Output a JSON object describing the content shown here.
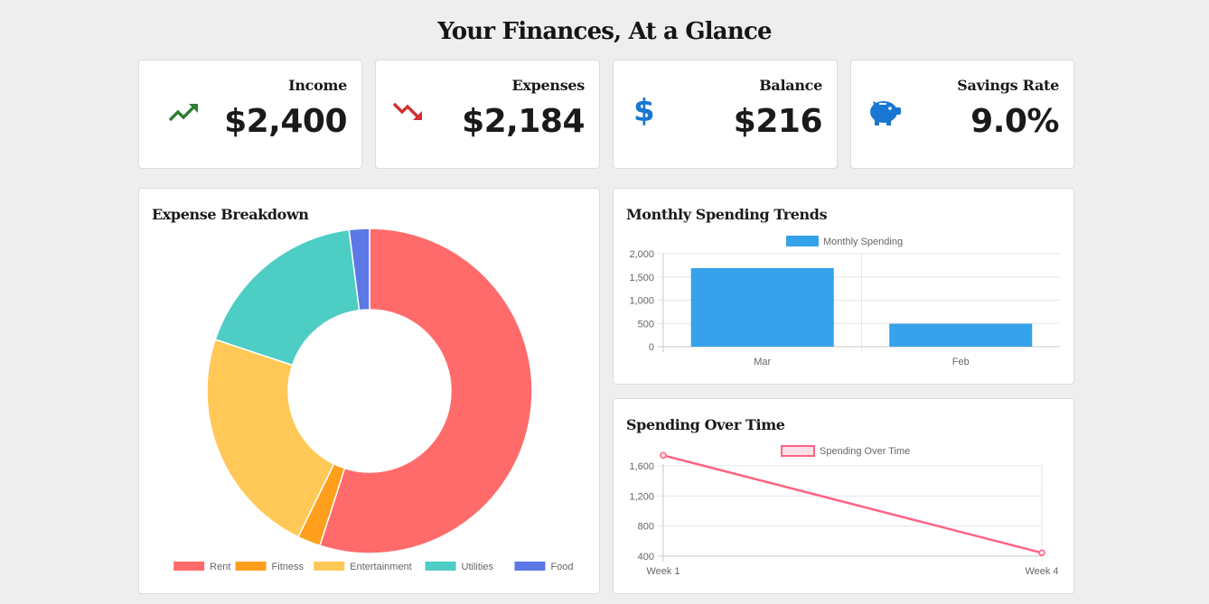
{
  "page": {
    "title": "Your Finances, At a Glance"
  },
  "stats": [
    {
      "label": "Income",
      "value": "$2,400",
      "icon": "trending-up-icon",
      "color": "#2e7d32"
    },
    {
      "label": "Expenses",
      "value": "$2,184",
      "icon": "trending-down-icon",
      "color": "#d32f2f"
    },
    {
      "label": "Balance",
      "value": "$216",
      "icon": "dollar-sign-icon",
      "color": "#1976d2"
    },
    {
      "label": "Savings Rate",
      "value": "9.0%",
      "icon": "piggy-bank-icon",
      "color": "#1976d2"
    }
  ],
  "chart_data": [
    {
      "type": "doughnut",
      "title": "Expense Breakdown",
      "labels": [
        "Rent",
        "Fitness",
        "Entertainment",
        "Utilities",
        "Food"
      ],
      "values": [
        1200,
        50,
        500,
        390,
        44
      ],
      "colors": [
        "#ff6b6b",
        "#ff9f1c",
        "#ffc857",
        "#4ecdc4",
        "#5b78e6"
      ],
      "legend": "bottom"
    },
    {
      "type": "bar",
      "title": "Monthly Spending Trends",
      "categories": [
        "Mar",
        "Feb"
      ],
      "series": [
        {
          "name": "Monthly Spending",
          "values": [
            1690,
            494
          ]
        }
      ],
      "ylim": [
        0,
        2000
      ],
      "yticks": [
        "2,000",
        "1,500",
        "1,000",
        "500",
        "0"
      ],
      "color": "#36a2eb",
      "grid": true,
      "legend": "top"
    },
    {
      "type": "line",
      "title": "Spending Over Time",
      "categories": [
        "Week 1",
        "Week 4"
      ],
      "series": [
        {
          "name": "Spending Over Time",
          "values": [
            1740,
            444
          ]
        }
      ],
      "ylim": [
        400,
        1600
      ],
      "yticks": [
        "1,600",
        "1,200",
        "800",
        "400"
      ],
      "color": "#ff6384",
      "grid": true,
      "legend": "top"
    }
  ]
}
